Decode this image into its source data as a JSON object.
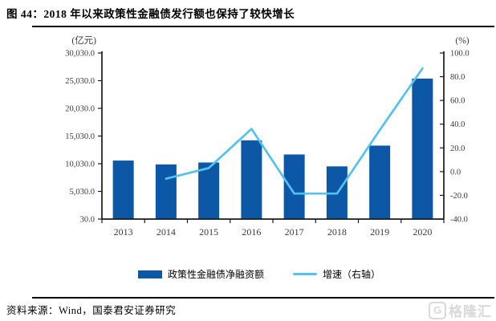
{
  "title": "图 44：2018 年以来政策性金融债发行额也保持了较快增长",
  "source": "资料来源：Wind，国泰君安证券研究",
  "logo": {
    "letter": "G",
    "text": "格隆汇"
  },
  "colors": {
    "bar": "#0d57a7",
    "line": "#55c1ee",
    "axis": "#1a1a1a",
    "tick_text": "#3a3a3a",
    "logo": "#d9d9d9"
  },
  "legend": [
    {
      "label": "政策性金融债净融资额",
      "type": "bar"
    },
    {
      "label": "增速（右轴）",
      "type": "line"
    }
  ],
  "chart_data": {
    "type": "bar",
    "categories": [
      "2013",
      "2014",
      "2015",
      "2016",
      "2017",
      "2018",
      "2019",
      "2020"
    ],
    "series": [
      {
        "name": "政策性金融债净融资额",
        "type": "bar",
        "axis": "left",
        "values": [
          10600,
          9900,
          10250,
          14250,
          11700,
          9550,
          13300,
          25400
        ]
      },
      {
        "name": "增速（右轴）",
        "type": "line",
        "axis": "right",
        "values": [
          null,
          -6,
          3,
          36,
          -18.5,
          -18.5,
          35,
          87
        ]
      }
    ],
    "left_axis": {
      "unit": "(亿元)",
      "min": 30,
      "max": 30030,
      "tick_labels": [
        "30,030.0",
        "25,030.0",
        "20,030.0",
        "15,030.0",
        "10,030.0",
        "5,030.0",
        "30.0"
      ]
    },
    "right_axis": {
      "unit": "(%)",
      "min": -40,
      "max": 100,
      "tick_labels": [
        "100.0",
        "80.0",
        "60.0",
        "40.0",
        "20.0",
        "0.0",
        "-20.0",
        "-40.0"
      ]
    },
    "grid": false,
    "legend_position": "bottom"
  }
}
